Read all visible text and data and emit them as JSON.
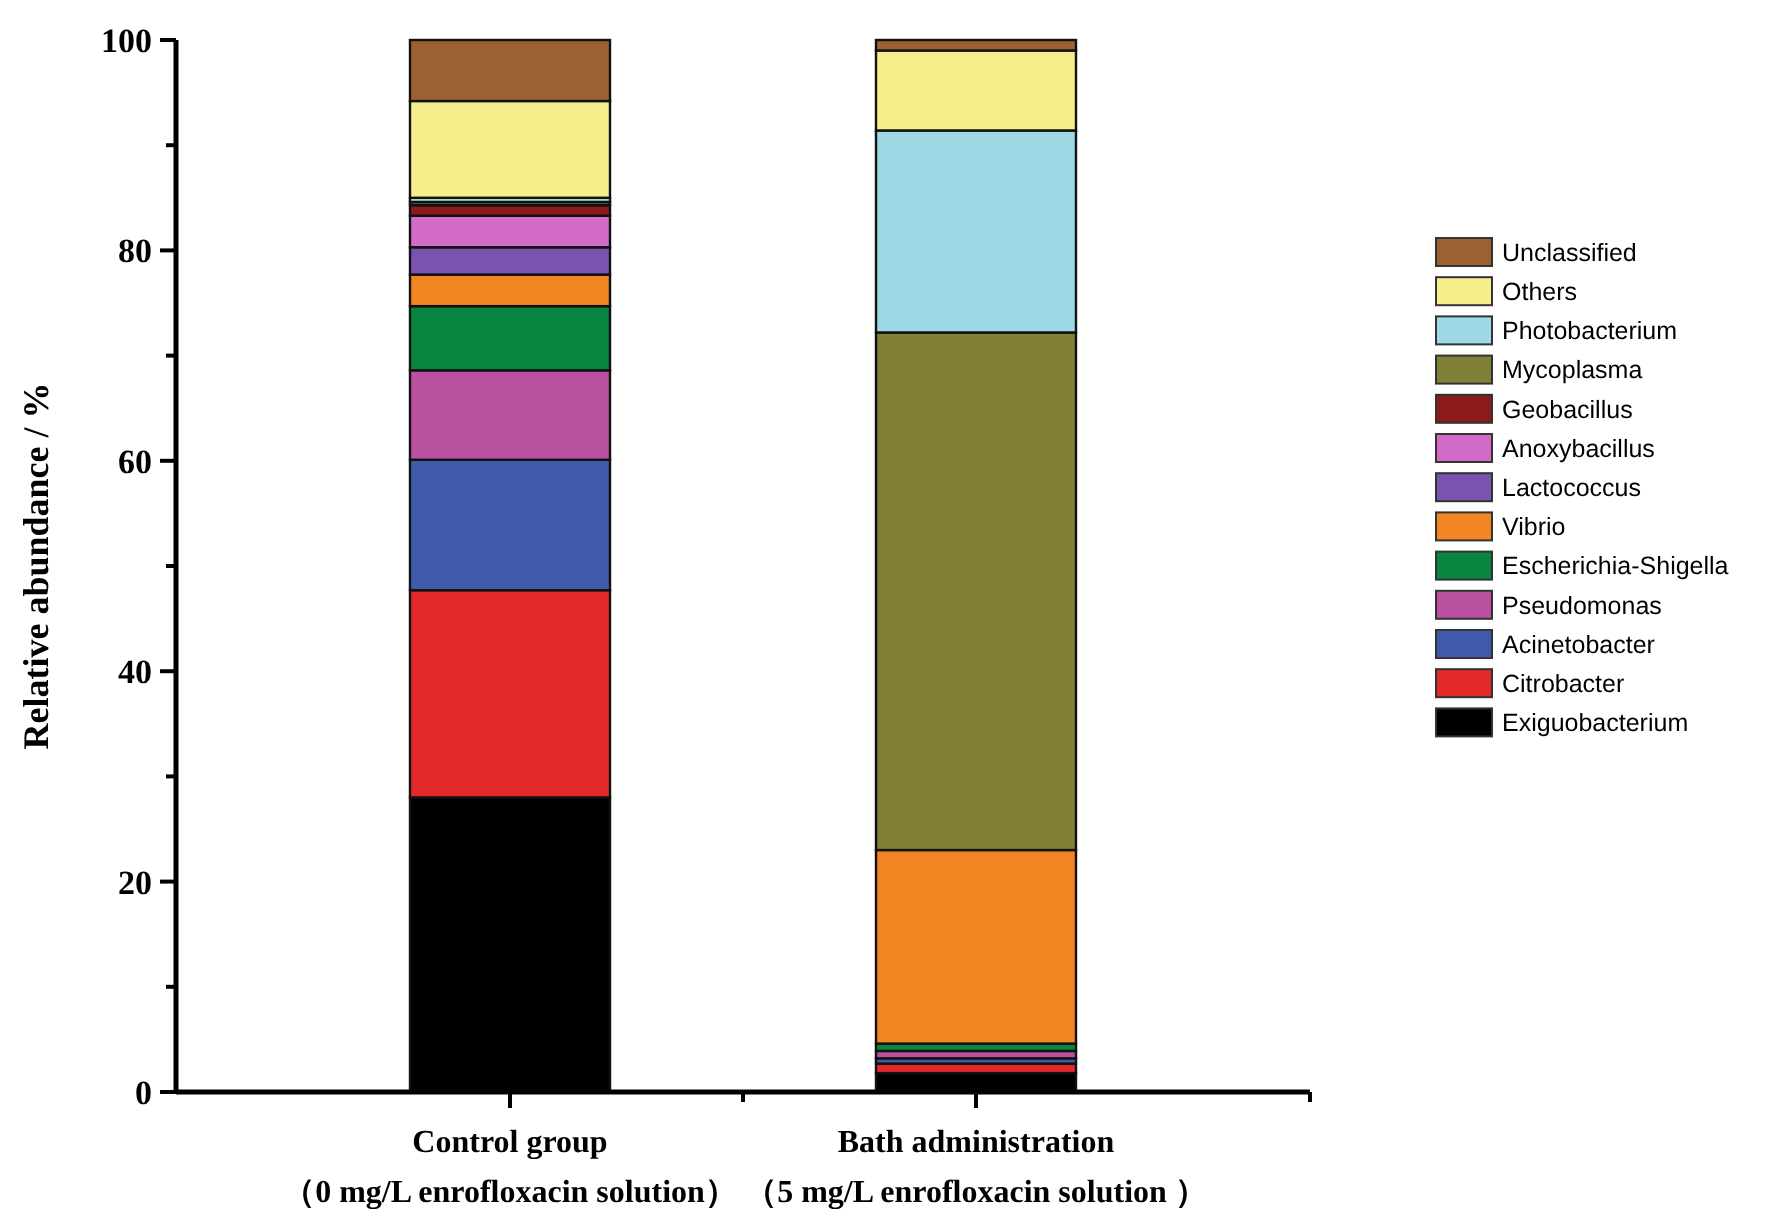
{
  "chart_data": {
    "type": "bar",
    "stacked": true,
    "ylabel": "Relative abundance / %",
    "categories": [
      "Control group\n（0 mg/L enrofloxacin solution）",
      "Bath administration\n（5 mg/L enrofloxacin solution ）"
    ],
    "series": [
      {
        "name": "Exiguobacterium",
        "color": "#000000",
        "values": [
          28,
          1.8
        ]
      },
      {
        "name": "Citrobacter",
        "color": "#e22a2a",
        "values": [
          19.7,
          0.9
        ]
      },
      {
        "name": "Acinetobacter",
        "color": "#3f5aaa",
        "values": [
          12.4,
          0.5
        ]
      },
      {
        "name": "Pseudomonas",
        "color": "#b950a0",
        "values": [
          8.5,
          0.7
        ]
      },
      {
        "name": "Escherichia-Shigella",
        "color": "#0a8540",
        "values": [
          6.1,
          0.7
        ]
      },
      {
        "name": "Vibrio",
        "color": "#f08522",
        "values": [
          3.0,
          18.4
        ]
      },
      {
        "name": "Lactococcus",
        "color": "#7a52b0",
        "values": [
          2.6,
          0
        ]
      },
      {
        "name": "Anoxybacillus",
        "color": "#d36cc8",
        "values": [
          3.0,
          0
        ]
      },
      {
        "name": "Geobacillus",
        "color": "#8b1a1a",
        "values": [
          1.0,
          0
        ]
      },
      {
        "name": "Mycoplasma",
        "color": "#7f8035",
        "values": [
          0.3,
          49.2
        ]
      },
      {
        "name": "Photobacterium",
        "color": "#9ed8e4",
        "values": [
          0.4,
          19.2
        ]
      },
      {
        "name": "Others",
        "color": "#f5ee8a",
        "values": [
          9.2,
          7.6
        ]
      },
      {
        "name": "Unclassified",
        "color": "#9a6230",
        "values": [
          5.8,
          1.0
        ]
      }
    ],
    "ylim": [
      0,
      100
    ],
    "yticks": [
      0,
      {
        "value": 10,
        "label": null
      },
      20,
      {
        "value": 30,
        "label": null
      },
      40,
      {
        "value": 50,
        "label": null
      },
      60,
      {
        "value": 70,
        "label": null
      },
      80,
      {
        "value": 90,
        "label": null
      },
      100
    ],
    "grid": false,
    "legend": "right"
  }
}
